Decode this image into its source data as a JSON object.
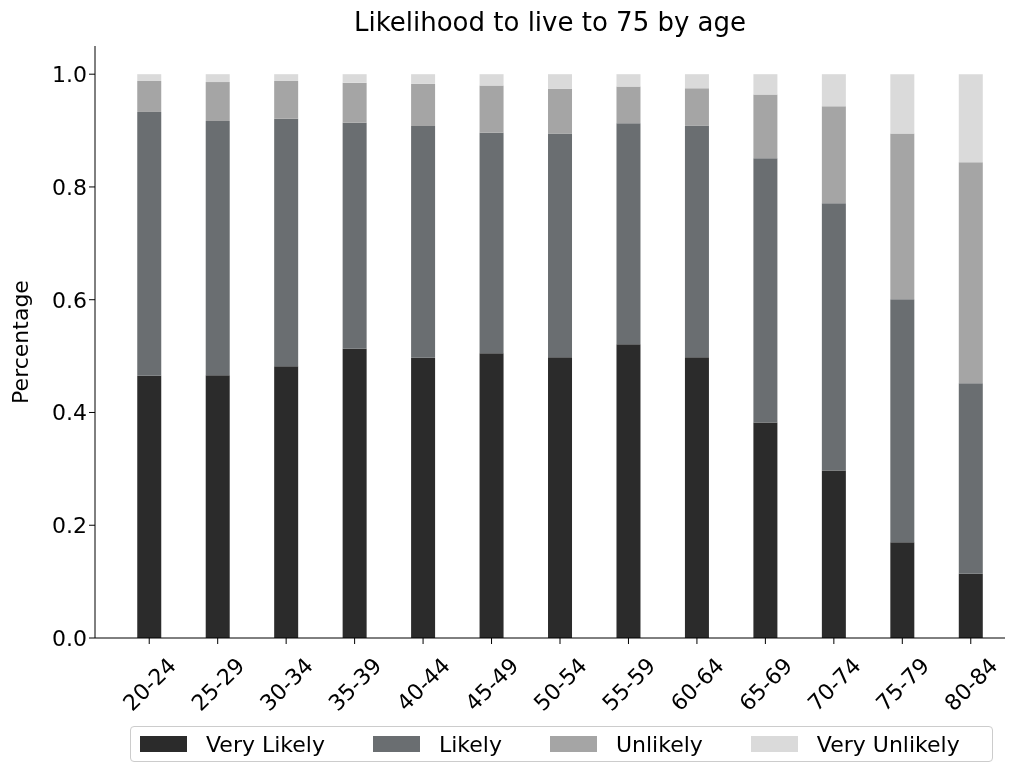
{
  "chart_data": {
    "type": "bar",
    "title": "Likelihood to live to 75 by age",
    "ylabel": "Percentage",
    "categories": [
      "20-24",
      "25-29",
      "30-34",
      "35-39",
      "40-44",
      "45-49",
      "50-54",
      "55-59",
      "60-64",
      "65-69",
      "70-74",
      "75-79",
      "80-84"
    ],
    "stacked": true,
    "series": [
      {
        "name": "Very Likely",
        "color": "#2b2b2b",
        "values": [
          0.465,
          0.466,
          0.482,
          0.513,
          0.497,
          0.505,
          0.498,
          0.521,
          0.498,
          0.382,
          0.297,
          0.17,
          0.114
        ]
      },
      {
        "name": "Likely",
        "color": "#6a6e71",
        "values": [
          0.468,
          0.451,
          0.439,
          0.401,
          0.411,
          0.391,
          0.397,
          0.392,
          0.411,
          0.469,
          0.474,
          0.431,
          0.338
        ]
      },
      {
        "name": "Unlikely",
        "color": "#a5a5a5",
        "values": [
          0.055,
          0.069,
          0.067,
          0.071,
          0.075,
          0.084,
          0.079,
          0.065,
          0.066,
          0.113,
          0.172,
          0.294,
          0.392
        ]
      },
      {
        "name": "Very Unlikely",
        "color": "#dadada",
        "values": [
          0.012,
          0.014,
          0.012,
          0.015,
          0.017,
          0.02,
          0.026,
          0.022,
          0.025,
          0.036,
          0.057,
          0.105,
          0.156
        ]
      }
    ],
    "ylim": [
      0,
      1.05
    ],
    "yticks": [
      {
        "value": 0,
        "label": "0.0"
      },
      0.2,
      0.4,
      0.6,
      0.8,
      {
        "value": 1,
        "label": "1.0"
      }
    ],
    "legend": "bottom"
  }
}
